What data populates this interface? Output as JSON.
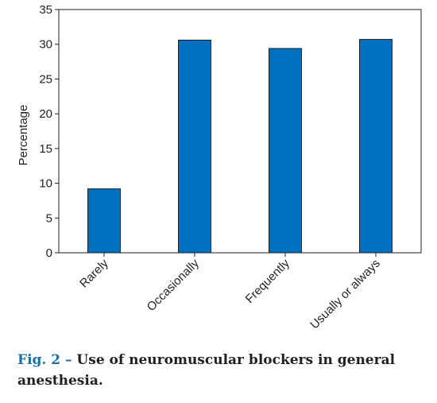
{
  "chart_data": {
    "type": "bar",
    "categories": [
      "Rarely",
      "Occasionally",
      "Frequently",
      "Usually or always"
    ],
    "values": [
      9.2,
      30.6,
      29.4,
      30.7
    ],
    "ylabel": "Percentage",
    "xlabel": "",
    "ylim": [
      0,
      35
    ],
    "yticks": [
      0,
      5,
      10,
      15,
      20,
      25,
      30,
      35
    ],
    "bar_color": "#0070c0",
    "grid": false,
    "legend": "none"
  },
  "caption": {
    "label": "Fig. 2 –",
    "text": " Use of neuromuscular blockers in general anesthesia."
  }
}
